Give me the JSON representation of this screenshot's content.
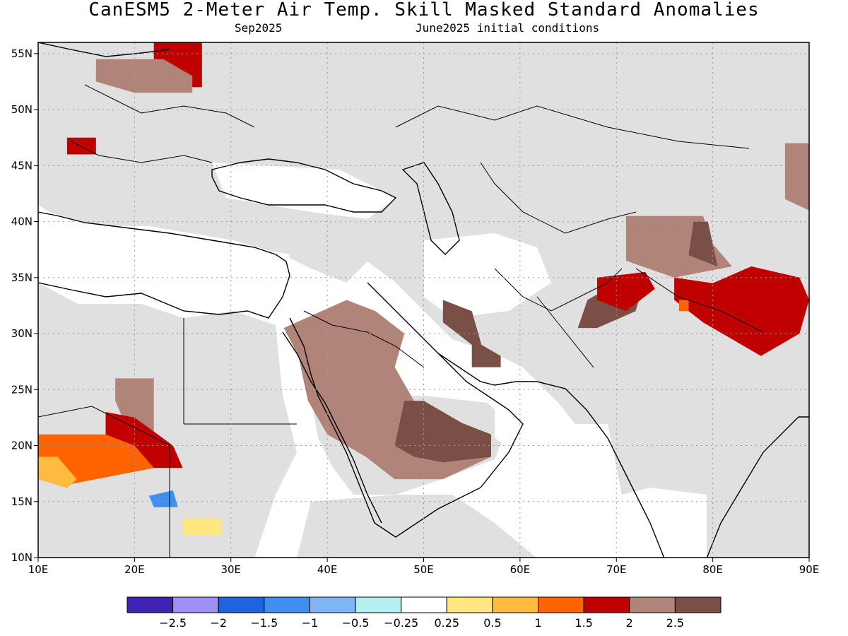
{
  "title": "CanESM5 2-Meter Air Temp. Skill Masked Standard Anomalies",
  "subtitle_left": "Sep2025",
  "subtitle_right": "June2025 initial conditions",
  "map": {
    "lon_range": [
      10,
      90
    ],
    "lat_range": [
      10,
      56
    ],
    "x_ticks": [
      {
        "v": 10,
        "label": "10E"
      },
      {
        "v": 20,
        "label": "20E"
      },
      {
        "v": 30,
        "label": "30E"
      },
      {
        "v": 40,
        "label": "40E"
      },
      {
        "v": 50,
        "label": "50E"
      },
      {
        "v": 60,
        "label": "60E"
      },
      {
        "v": 70,
        "label": "70E"
      },
      {
        "v": 80,
        "label": "80E"
      },
      {
        "v": 90,
        "label": "90E"
      }
    ],
    "y_ticks": [
      {
        "v": 10,
        "label": "10N"
      },
      {
        "v": 15,
        "label": "15N"
      },
      {
        "v": 20,
        "label": "20N"
      },
      {
        "v": 25,
        "label": "25N"
      },
      {
        "v": 30,
        "label": "30N"
      },
      {
        "v": 35,
        "label": "35N"
      },
      {
        "v": 40,
        "label": "40N"
      },
      {
        "v": 45,
        "label": "45N"
      },
      {
        "v": 50,
        "label": "50N"
      },
      {
        "v": 55,
        "label": "55N"
      }
    ],
    "masked_color": "#e0e0e0"
  },
  "colorbar": {
    "colors": [
      "#3f22b3",
      "#9f8ff5",
      "#1f63e0",
      "#3f8ff0",
      "#7fb4f5",
      "#b4f0f0",
      "#ffffff",
      "#ffe680",
      "#ffba3f",
      "#ff6400",
      "#c00000",
      "#b08478",
      "#7a5046"
    ],
    "labels": [
      "−2.5",
      "−2",
      "−1.5",
      "−1",
      "−0.5",
      "−0.25",
      "0.25",
      "0.5",
      "1",
      "1.5",
      "2",
      "2.5"
    ]
  },
  "anomaly_regions": [
    {
      "name": "poland-belarus",
      "color": "#c00000",
      "lonlat": [
        [
          22,
          56
        ],
        [
          27,
          56
        ],
        [
          27,
          52
        ],
        [
          24,
          52
        ],
        [
          23,
          54
        ],
        [
          22,
          54
        ]
      ]
    },
    {
      "name": "ukraine-north",
      "color": "#b08478",
      "lonlat": [
        [
          16,
          54.5
        ],
        [
          23,
          54.5
        ],
        [
          26,
          53
        ],
        [
          26,
          51.5
        ],
        [
          20,
          51.5
        ],
        [
          16,
          52.5
        ]
      ]
    },
    {
      "name": "hungary",
      "color": "#c00000",
      "lonlat": [
        [
          13,
          47.5
        ],
        [
          16,
          47.5
        ],
        [
          16,
          46
        ],
        [
          13,
          46
        ]
      ]
    },
    {
      "name": "tajikistan",
      "color": "#b08478",
      "lonlat": [
        [
          71,
          40.5
        ],
        [
          79,
          40.5
        ],
        [
          80,
          38
        ],
        [
          82,
          36
        ],
        [
          76,
          35
        ],
        [
          71,
          36.5
        ]
      ]
    },
    {
      "name": "tajik-core",
      "color": "#7a5046",
      "lonlat": [
        [
          78,
          40
        ],
        [
          79.5,
          40
        ],
        [
          80.5,
          36
        ],
        [
          77.5,
          37
        ]
      ]
    },
    {
      "name": "himalaya-red",
      "color": "#c00000",
      "lonlat": [
        [
          76,
          35
        ],
        [
          80,
          34.5
        ],
        [
          84,
          36
        ],
        [
          89,
          35
        ],
        [
          90,
          33
        ],
        [
          89,
          30
        ],
        [
          85,
          28
        ],
        [
          79,
          31
        ],
        [
          76,
          33
        ]
      ]
    },
    {
      "name": "himalaya-orange",
      "color": "#ff6400",
      "lonlat": [
        [
          76.5,
          33
        ],
        [
          77.5,
          33
        ],
        [
          77.5,
          32
        ],
        [
          76.5,
          32
        ]
      ]
    },
    {
      "name": "tibet-east",
      "color": "#b08478",
      "lonlat": [
        [
          87.5,
          47
        ],
        [
          90,
          47
        ],
        [
          90,
          41
        ],
        [
          87.5,
          42
        ]
      ]
    },
    {
      "name": "afghan-south",
      "color": "#7a5046",
      "lonlat": [
        [
          67,
          33
        ],
        [
          71,
          35
        ],
        [
          73,
          35
        ],
        [
          72,
          32
        ],
        [
          68,
          30.5
        ],
        [
          66,
          30.5
        ]
      ]
    },
    {
      "name": "pakistan-red",
      "color": "#c00000",
      "lonlat": [
        [
          68,
          35
        ],
        [
          73,
          35.5
        ],
        [
          74,
          34
        ],
        [
          71,
          32
        ],
        [
          68,
          33
        ]
      ]
    },
    {
      "name": "arabia",
      "color": "#b08478",
      "lonlat": [
        [
          35.5,
          30.5
        ],
        [
          42,
          33
        ],
        [
          45,
          32
        ],
        [
          48,
          30
        ],
        [
          47,
          27
        ],
        [
          49,
          24
        ],
        [
          52,
          22
        ],
        [
          55,
          21
        ],
        [
          57,
          19
        ],
        [
          52,
          17
        ],
        [
          47,
          17
        ],
        [
          44,
          19
        ],
        [
          42,
          20
        ],
        [
          40,
          21
        ],
        [
          38,
          24
        ],
        [
          37,
          28
        ]
      ]
    },
    {
      "name": "rub-al-khali",
      "color": "#7a5046",
      "lonlat": [
        [
          48,
          24
        ],
        [
          50,
          24
        ],
        [
          54,
          22
        ],
        [
          57,
          21
        ],
        [
          57,
          19
        ],
        [
          52,
          18.5
        ],
        [
          49,
          19
        ],
        [
          47,
          20
        ]
      ]
    },
    {
      "name": "iran",
      "color": "#7a5046",
      "lonlat": [
        [
          52,
          33
        ],
        [
          55,
          32
        ],
        [
          56,
          29
        ],
        [
          58,
          28
        ],
        [
          58,
          27
        ],
        [
          55,
          27
        ],
        [
          55,
          29
        ],
        [
          52,
          31
        ]
      ]
    },
    {
      "name": "sahara-brown",
      "color": "#b08478",
      "lonlat": [
        [
          18,
          26
        ],
        [
          22,
          26
        ],
        [
          22,
          21
        ],
        [
          19,
          22
        ],
        [
          18,
          24
        ]
      ]
    },
    {
      "name": "sahara-red",
      "color": "#c00000",
      "lonlat": [
        [
          17,
          23
        ],
        [
          20,
          22.5
        ],
        [
          24,
          20
        ],
        [
          25,
          18
        ],
        [
          22,
          18
        ],
        [
          17,
          21
        ]
      ]
    },
    {
      "name": "libya-orange",
      "color": "#ff6400",
      "lonlat": [
        [
          10,
          21
        ],
        [
          17,
          21
        ],
        [
          20,
          20
        ],
        [
          22,
          18
        ],
        [
          16,
          17
        ],
        [
          13,
          16.5
        ],
        [
          10,
          17.5
        ]
      ]
    },
    {
      "name": "libya-yellow",
      "color": "#ffba3f",
      "lonlat": [
        [
          10,
          19
        ],
        [
          12,
          19
        ],
        [
          14,
          17
        ],
        [
          13,
          16.2
        ],
        [
          10,
          17
        ]
      ]
    },
    {
      "name": "chad-blue",
      "color": "#3f8ff0",
      "lonlat": [
        [
          21.5,
          15.5
        ],
        [
          24,
          16
        ],
        [
          24.5,
          14.5
        ],
        [
          22,
          14.5
        ]
      ]
    },
    {
      "name": "sudan-yellow",
      "color": "#ffe680",
      "lonlat": [
        [
          25,
          13.5
        ],
        [
          29,
          13.5
        ],
        [
          29,
          12
        ],
        [
          25,
          12
        ]
      ]
    }
  ]
}
